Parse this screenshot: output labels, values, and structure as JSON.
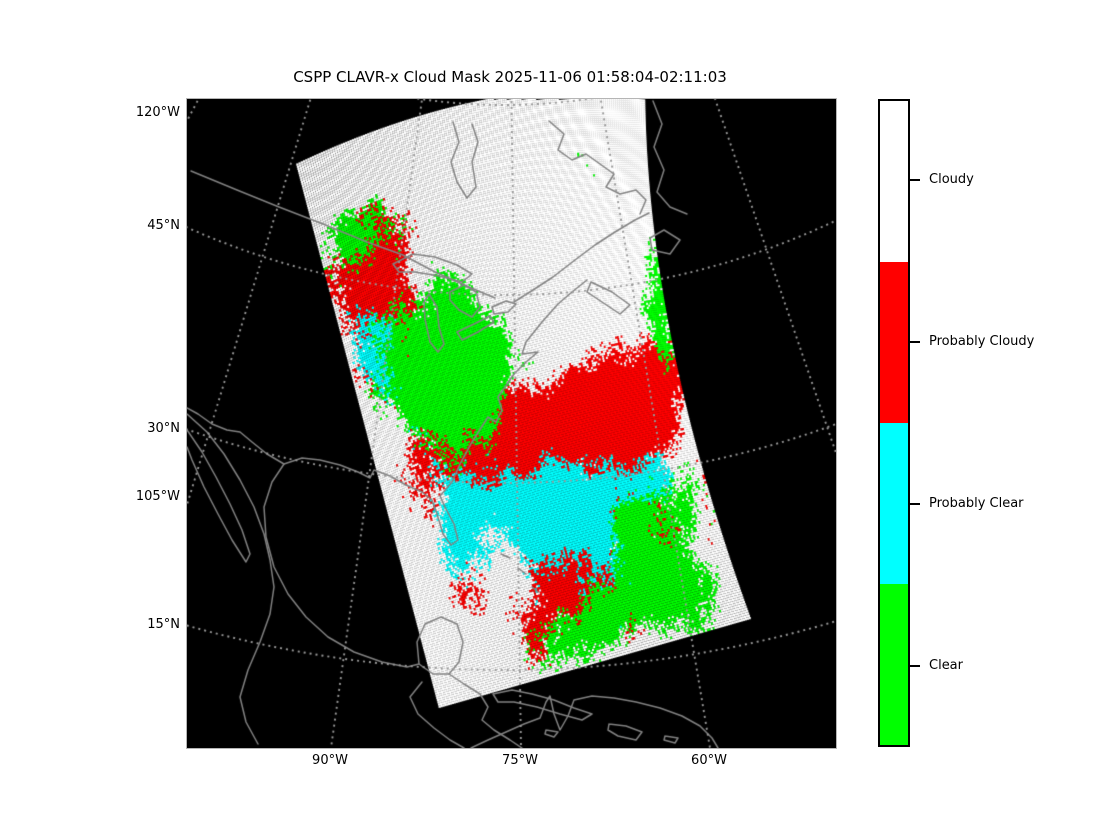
{
  "figure": {
    "title": "CSPP CLAVR-x Cloud Mask 2025-11-06 01:58:04-02:11:03"
  },
  "map": {
    "background_color": "#000000",
    "coastline_color": "#828282",
    "graticule_color": "#999999",
    "frame_color": "#b5b5b5",
    "y_axis_labels": [
      {
        "text": "120°W"
      },
      {
        "text": "45°N"
      },
      {
        "text": "30°N"
      },
      {
        "text": "105°W"
      },
      {
        "text": "15°N"
      }
    ],
    "x_axis_labels": [
      {
        "text": "90°W"
      },
      {
        "text": "75°W"
      },
      {
        "text": "60°W"
      }
    ]
  },
  "legend": {
    "items": [
      {
        "label": "Cloudy",
        "color": "#ffffff"
      },
      {
        "label": "Probably Cloudy",
        "color": "#ff0000"
      },
      {
        "label": "Probably Clear",
        "color": "#00ffff"
      },
      {
        "label": "Clear",
        "color": "#00ff00"
      }
    ]
  }
}
